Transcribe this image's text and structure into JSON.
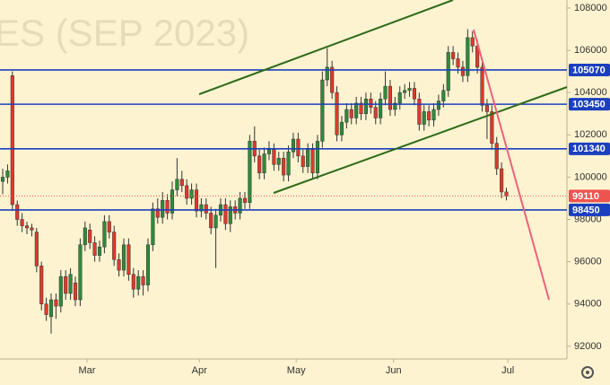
{
  "chart_data": {
    "type": "candlestick",
    "title": "ES (SEP 2023)",
    "up_color": "#2f8a3b",
    "down_color": "#e0392b",
    "open": [
      99800,
      100000,
      104800,
      98700,
      98000,
      97700,
      97600,
      97400,
      95800,
      94000,
      93400,
      94200,
      93900,
      95300,
      94500,
      95000,
      94200,
      96800,
      97500,
      96900,
      96300,
      96700,
      97900,
      97400,
      96100,
      95600,
      96800,
      95400,
      94700,
      95300,
      94900,
      96800,
      98500,
      98100,
      98900,
      98300,
      99400,
      99900,
      99600,
      99000,
      99400,
      98400,
      98700,
      98300,
      97600,
      98200,
      98700,
      97800,
      98600,
      98300,
      99000,
      98800,
      101700,
      101000,
      100200,
      101100,
      101300,
      100600,
      100900,
      100100,
      101200,
      101800,
      101000,
      100500,
      101300,
      100200,
      101700,
      104600,
      105200,
      104000,
      102000,
      102600,
      103200,
      102800,
      103500,
      103000,
      103700,
      103300,
      102800,
      103700,
      104300,
      103200,
      103500,
      104000,
      104100,
      104200,
      103700,
      102500,
      103100,
      102700,
      103200,
      103600,
      104100,
      105900,
      105600,
      105200,
      104800,
      106600,
      106200,
      105200,
      103400,
      103100,
      101600,
      100400,
      99300
    ],
    "high": [
      100400,
      100600,
      105000,
      98900,
      98300,
      97900,
      97800,
      97600,
      96000,
      94300,
      94500,
      94500,
      95600,
      95600,
      95700,
      95300,
      97100,
      97900,
      97800,
      97200,
      97000,
      98200,
      98200,
      97700,
      96400,
      97100,
      97100,
      95700,
      95600,
      95600,
      97100,
      98800,
      99000,
      99300,
      99200,
      99800,
      100900,
      100300,
      99900,
      99700,
      99700,
      99000,
      99000,
      98600,
      98500,
      99000,
      99000,
      98900,
      98900,
      99300,
      99300,
      102000,
      102400,
      101300,
      101400,
      101700,
      101600,
      101200,
      101200,
      101500,
      102100,
      102100,
      101300,
      101600,
      101600,
      102000,
      105000,
      106100,
      105500,
      104300,
      102900,
      103500,
      103500,
      103800,
      103800,
      104000,
      104000,
      103600,
      104000,
      105000,
      104600,
      103800,
      104300,
      104400,
      104500,
      104500,
      104000,
      103400,
      103400,
      103500,
      103900,
      104400,
      106200,
      106200,
      105900,
      105500,
      107000,
      106900,
      106500,
      105500,
      103700,
      103400,
      101900,
      100700,
      99500
    ],
    "low": [
      99200,
      99700,
      98400,
      97700,
      97400,
      97300,
      97200,
      95500,
      93700,
      93200,
      92600,
      93300,
      93600,
      94200,
      94200,
      93900,
      93900,
      96500,
      96600,
      96000,
      96000,
      96400,
      97100,
      95800,
      95300,
      95300,
      95100,
      94300,
      94400,
      94400,
      94600,
      96500,
      97800,
      97800,
      98000,
      98000,
      99100,
      99300,
      98700,
      98700,
      98100,
      98100,
      98000,
      97300,
      95700,
      97900,
      97500,
      97400,
      98000,
      98000,
      98500,
      98500,
      100700,
      99900,
      99900,
      100800,
      100300,
      100300,
      99800,
      99800,
      100900,
      100700,
      100200,
      100200,
      99900,
      99900,
      101400,
      104300,
      103700,
      101700,
      101700,
      102300,
      102500,
      102500,
      102700,
      102700,
      103000,
      102500,
      102500,
      103400,
      102900,
      102900,
      103200,
      103700,
      103800,
      103400,
      102200,
      102200,
      102400,
      102400,
      102900,
      103300,
      103800,
      105300,
      104900,
      104500,
      104500,
      105900,
      104900,
      103100,
      101800,
      101300,
      100100,
      99000,
      98900
    ],
    "close": [
      100000,
      100300,
      98700,
      98000,
      97700,
      97600,
      97500,
      95800,
      94000,
      93500,
      94200,
      93900,
      95300,
      94500,
      95400,
      94200,
      96800,
      97600,
      96900,
      96300,
      96700,
      97900,
      97400,
      96100,
      95600,
      96800,
      95400,
      94700,
      95300,
      94900,
      96800,
      98500,
      98100,
      98900,
      98300,
      99400,
      99900,
      99600,
      99000,
      99400,
      98400,
      98700,
      98300,
      97600,
      98200,
      98700,
      97800,
      98600,
      98300,
      99000,
      98800,
      101700,
      101000,
      100200,
      101100,
      101300,
      100600,
      100900,
      100100,
      101200,
      101800,
      101000,
      100500,
      101300,
      100200,
      101700,
      104600,
      105200,
      104000,
      102000,
      102600,
      103200,
      102800,
      103500,
      103000,
      103700,
      103300,
      102800,
      103700,
      104300,
      103200,
      103500,
      104000,
      104100,
      104200,
      103700,
      102500,
      103100,
      102700,
      103200,
      103600,
      104100,
      105900,
      105600,
      105200,
      104800,
      106600,
      106200,
      105200,
      103400,
      103100,
      101600,
      100400,
      99300,
      99110
    ],
    "xlim": [
      -0.56,
      116.5
    ],
    "xticks": [
      {
        "value": 17.4,
        "label": "Mar"
      },
      {
        "value": 40.6,
        "label": "Apr"
      },
      {
        "value": 60.6,
        "label": "May"
      },
      {
        "value": 80.7,
        "label": "Jun"
      },
      {
        "value": 104.3,
        "label": "Jul"
      }
    ],
    "ylim": [
      91400,
      108380
    ],
    "yticks": [
      92000,
      94000,
      96000,
      98000,
      100000,
      102000,
      104000,
      106000,
      108000
    ],
    "price_lines": [
      {
        "value": 105070,
        "color": "#1c3fbf",
        "style": "solid"
      },
      {
        "value": 103450,
        "color": "#1c3fbf",
        "style": "solid"
      },
      {
        "value": 101340,
        "color": "#1c3fbf",
        "style": "solid"
      },
      {
        "value": 98450,
        "color": "#1c3fbf",
        "style": "solid"
      },
      {
        "value": 99110,
        "color": "#ef5350",
        "style": "dotted"
      }
    ]
  }
}
